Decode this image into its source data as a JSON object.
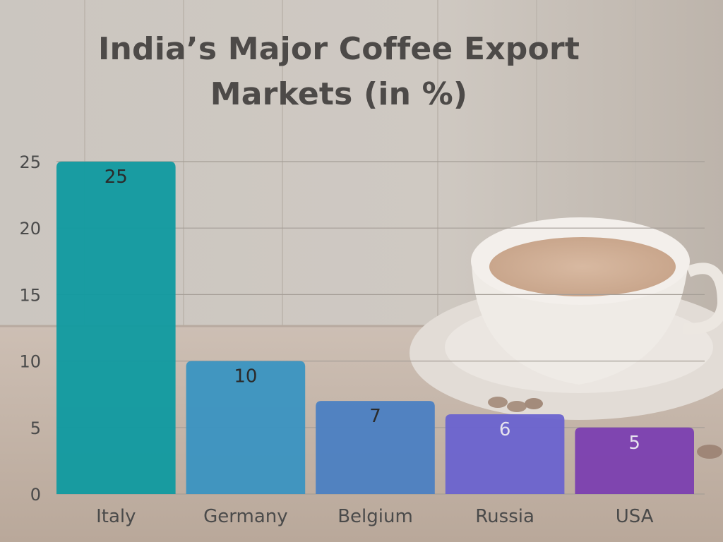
{
  "colors": {
    "background": "#c9c3bc",
    "title": "#4d4a48",
    "gridline": "#a59e97",
    "bars": [
      "#0f9aa0",
      "#3a94c1",
      "#4b7fc2",
      "#6a63cf",
      "#7b3fb0"
    ],
    "data_label_dark": "#2b2b2b",
    "data_label_light": "#e6e2ee"
  },
  "background_image": "coffee cup on saucer on wooden table",
  "chart_data": {
    "type": "bar",
    "title": "India’s Major Coffee Export Markets (in %)",
    "title_lines": [
      "India’s Major Coffee Export",
      "Markets (in %)"
    ],
    "xlabel": "",
    "ylabel": "",
    "categories": [
      "Italy",
      "Germany",
      "Belgium",
      "Russia",
      "USA"
    ],
    "values": [
      25,
      10,
      7,
      6,
      5
    ],
    "data_labels": [
      "25",
      "10",
      "7",
      "6",
      "5"
    ],
    "ylim": [
      0,
      25
    ],
    "yticks": [
      0,
      5,
      10,
      15,
      20,
      25
    ],
    "grid": true,
    "legend": "none"
  }
}
